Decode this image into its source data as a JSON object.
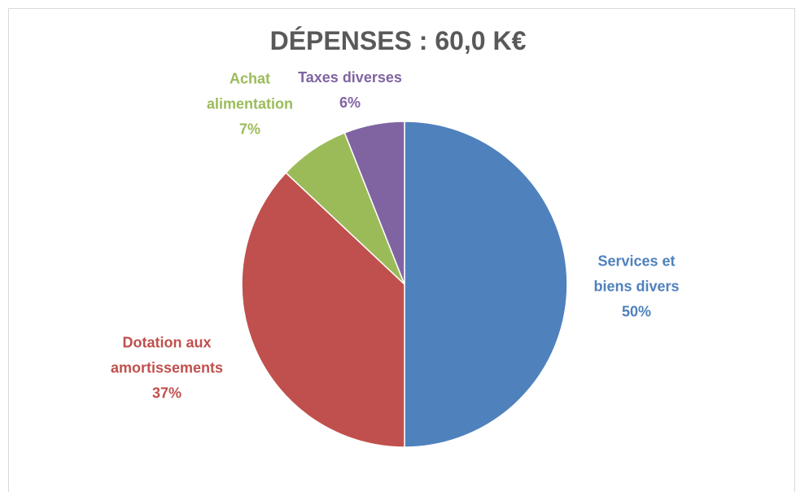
{
  "chart_data": {
    "type": "pie",
    "title": "DÉPENSES : 60,0 K€",
    "categories": [
      "Services et biens divers",
      "Dotation aux amortissements",
      "Achat alimentation",
      "Taxes diverses"
    ],
    "values": [
      50,
      37,
      7,
      6
    ],
    "value_labels": [
      "50%",
      "37%",
      "7%",
      "6%"
    ],
    "colors": [
      "#4f81bd",
      "#c0504d",
      "#9bbb59",
      "#8064a2"
    ]
  }
}
